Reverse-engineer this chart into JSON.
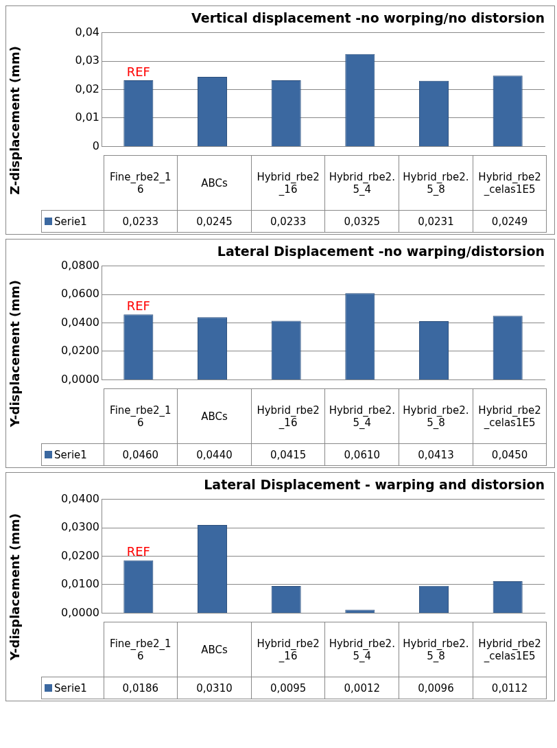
{
  "chart_data": [
    {
      "type": "bar",
      "title": "Vertical displacement -no worping/no distorsion",
      "ylabel": "Z-displacement (mm)",
      "categories": [
        "Fine_rbe2_16",
        "ABCs",
        "Hybrid_rbe2_16",
        "Hybrid_rbe2.5_4",
        "Hybrid_rbe2.5_8",
        "Hybrid_rbe2_celas1E5"
      ],
      "series": [
        {
          "name": "Serie1",
          "color": "#3b68a0",
          "values": [
            0.0233,
            0.0245,
            0.0233,
            0.0325,
            0.0231,
            0.0249
          ],
          "value_labels": [
            "0,0233",
            "0,0245",
            "0,0233",
            "0,0325",
            "0,0231",
            "0,0249"
          ]
        }
      ],
      "ylim": [
        0,
        0.04
      ],
      "yticks": [
        {
          "value": 0,
          "label": "0"
        },
        {
          "value": 0.01,
          "label": "0,01"
        },
        {
          "value": 0.02,
          "label": "0,02"
        },
        {
          "value": 0.03,
          "label": "0,03"
        },
        {
          "value": 0.04,
          "label": "0,04"
        }
      ],
      "grid": "y",
      "legend": "bottom",
      "annotations": [
        {
          "text": "REF",
          "x": "Fine_rbe2_16",
          "y": 0.0233
        }
      ]
    },
    {
      "type": "bar",
      "title": "Lateral Displacement -no warping/distorsion",
      "ylabel": "Y-displacement (mm)",
      "categories": [
        "Fine_rbe2_16",
        "ABCs",
        "Hybrid_rbe2_16",
        "Hybrid_rbe2.5_4",
        "Hybrid_rbe2.5_8",
        "Hybrid_rbe2_celas1E5"
      ],
      "series": [
        {
          "name": "Serie1",
          "color": "#3b68a0",
          "values": [
            0.046,
            0.044,
            0.0415,
            0.061,
            0.0413,
            0.045
          ],
          "value_labels": [
            "0,0460",
            "0,0440",
            "0,0415",
            "0,0610",
            "0,0413",
            "0,0450"
          ]
        }
      ],
      "ylim": [
        0,
        0.08
      ],
      "yticks": [
        {
          "value": 0,
          "label": "0,0000"
        },
        {
          "value": 0.02,
          "label": "0,0200"
        },
        {
          "value": 0.04,
          "label": "0,0400"
        },
        {
          "value": 0.06,
          "label": "0,0600"
        },
        {
          "value": 0.08,
          "label": "0,0800"
        }
      ],
      "grid": "y",
      "legend": "bottom",
      "annotations": [
        {
          "text": "REF",
          "x": "Fine_rbe2_16",
          "y": 0.046
        }
      ]
    },
    {
      "type": "bar",
      "title": "Lateral Displacement - warping and distorsion",
      "ylabel": "Y-displacement (mm)",
      "categories": [
        "Fine_rbe2_16",
        "ABCs",
        "Hybrid_rbe2_16",
        "Hybrid_rbe2.5_4",
        "Hybrid_rbe2.5_8",
        "Hybrid_rbe2_celas1E5"
      ],
      "series": [
        {
          "name": "Serie1",
          "color": "#3b68a0",
          "values": [
            0.0186,
            0.031,
            0.0095,
            0.0012,
            0.0096,
            0.0112
          ],
          "value_labels": [
            "0,0186",
            "0,0310",
            "0,0095",
            "0,0012",
            "0,0096",
            "0,0112"
          ]
        }
      ],
      "ylim": [
        0,
        0.04
      ],
      "yticks": [
        {
          "value": 0,
          "label": "0,0000"
        },
        {
          "value": 0.01,
          "label": "0,0100"
        },
        {
          "value": 0.02,
          "label": "0,0200"
        },
        {
          "value": 0.03,
          "label": "0,0300"
        },
        {
          "value": 0.04,
          "label": "0,0400"
        }
      ],
      "grid": "y",
      "legend": "bottom",
      "annotations": [
        {
          "text": "REF",
          "x": "Fine_rbe2_16",
          "y": 0.0186
        }
      ]
    }
  ]
}
